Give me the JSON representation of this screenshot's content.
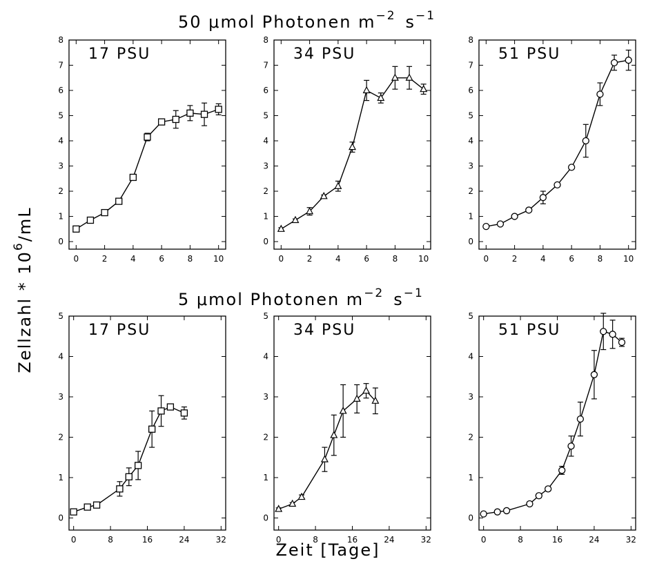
{
  "figure": {
    "row_titles": [
      "50 μmol Photonen m",
      "5 μmol Photonen m"
    ],
    "row_title_units": {
      "exp1": "−2",
      "s": "s",
      "exp2": "−1"
    },
    "ylabel": "Zellzahl * 10",
    "ylabel_exp": "6",
    "ylabel_unit": "/mL",
    "xlabel": "Zeit [Tage]",
    "colors": {
      "ink": "#000000",
      "background": "#ffffff"
    }
  },
  "chart_data": [
    {
      "type": "line",
      "panel": "top-left",
      "title": "17 PSU",
      "marker": "square",
      "xlim": [
        -0.5,
        10.5
      ],
      "ylim": [
        -0.3,
        8
      ],
      "xticks": [
        0,
        2,
        4,
        6,
        8,
        10
      ],
      "yticks": [
        0,
        1,
        2,
        3,
        4,
        5,
        6,
        7,
        8
      ],
      "x": [
        0,
        1,
        2,
        3,
        4,
        5,
        6,
        7,
        8,
        9,
        10
      ],
      "y": [
        0.5,
        0.85,
        1.15,
        1.6,
        2.55,
        4.15,
        4.75,
        4.85,
        5.1,
        5.05,
        5.25
      ],
      "err": [
        0.08,
        0.08,
        0.08,
        0.08,
        0.08,
        0.15,
        0.1,
        0.35,
        0.3,
        0.45,
        0.22
      ]
    },
    {
      "type": "line",
      "panel": "top-middle",
      "title": "34 PSU",
      "marker": "triangle",
      "xlim": [
        -0.5,
        10.5
      ],
      "ylim": [
        -0.3,
        8
      ],
      "xticks": [
        0,
        2,
        4,
        6,
        8,
        10
      ],
      "yticks": [
        0,
        1,
        2,
        3,
        4,
        5,
        6,
        7,
        8
      ],
      "x": [
        0,
        1,
        2,
        3,
        4,
        5,
        6,
        7,
        8,
        9,
        10
      ],
      "y": [
        0.5,
        0.85,
        1.2,
        1.8,
        2.2,
        3.75,
        6.0,
        5.7,
        6.5,
        6.5,
        6.05
      ],
      "err": [
        0.05,
        0.05,
        0.15,
        0.05,
        0.2,
        0.2,
        0.4,
        0.2,
        0.45,
        0.45,
        0.2
      ]
    },
    {
      "type": "line",
      "panel": "top-right",
      "title": "51 PSU",
      "marker": "circle",
      "xlim": [
        -0.5,
        10.5
      ],
      "ylim": [
        -0.3,
        8
      ],
      "xticks": [
        0,
        2,
        4,
        6,
        8,
        10
      ],
      "yticks": [
        0,
        1,
        2,
        3,
        4,
        5,
        6,
        7,
        8
      ],
      "x": [
        0,
        1,
        2,
        3,
        4,
        5,
        6,
        7,
        8,
        9,
        10
      ],
      "y": [
        0.6,
        0.7,
        1.0,
        1.25,
        1.75,
        2.25,
        2.95,
        4.0,
        5.85,
        7.1,
        7.2
      ],
      "err": [
        0.05,
        0.05,
        0.05,
        0.05,
        0.25,
        0.05,
        0.05,
        0.65,
        0.45,
        0.3,
        0.4
      ]
    },
    {
      "type": "line",
      "panel": "bottom-left",
      "title": "17 PSU",
      "marker": "square",
      "xlim": [
        -1,
        33
      ],
      "ylim": [
        -0.3,
        5
      ],
      "xticks": [
        0,
        8,
        16,
        24,
        32
      ],
      "yticks": [
        0,
        1,
        2,
        3,
        4,
        5
      ],
      "x": [
        0,
        3,
        5,
        10,
        12,
        14,
        17,
        19,
        21,
        24
      ],
      "y": [
        0.15,
        0.27,
        0.32,
        0.72,
        1.02,
        1.3,
        2.2,
        2.65,
        2.75,
        2.6
      ],
      "err": [
        0.05,
        0.05,
        0.05,
        0.18,
        0.22,
        0.35,
        0.45,
        0.38,
        0.05,
        0.15
      ]
    },
    {
      "type": "line",
      "panel": "bottom-middle",
      "title": "34 PSU",
      "marker": "triangle",
      "xlim": [
        -1,
        33
      ],
      "ylim": [
        -0.3,
        5
      ],
      "xticks": [
        0,
        8,
        16,
        24,
        32
      ],
      "yticks": [
        0,
        1,
        2,
        3,
        4,
        5
      ],
      "x": [
        0,
        3,
        5,
        10,
        12,
        14,
        17,
        19,
        21
      ],
      "y": [
        0.22,
        0.35,
        0.52,
        1.45,
        2.05,
        2.65,
        2.95,
        3.15,
        2.9
      ],
      "err": [
        0.03,
        0.03,
        0.05,
        0.3,
        0.5,
        0.65,
        0.35,
        0.18,
        0.32
      ]
    },
    {
      "type": "line",
      "panel": "bottom-right",
      "title": "51 PSU",
      "marker": "circle",
      "xlim": [
        -1,
        33
      ],
      "ylim": [
        -0.3,
        5
      ],
      "xticks": [
        0,
        8,
        16,
        24,
        32
      ],
      "yticks": [
        0,
        1,
        2,
        3,
        4,
        5
      ],
      "x": [
        0,
        3,
        5,
        10,
        12,
        14,
        17,
        19,
        21,
        24,
        26,
        28,
        30
      ],
      "y": [
        0.1,
        0.15,
        0.18,
        0.35,
        0.55,
        0.72,
        1.18,
        1.78,
        2.45,
        3.55,
        4.62,
        4.55,
        4.35
      ],
      "err": [
        0.03,
        0.03,
        0.03,
        0.05,
        0.05,
        0.05,
        0.1,
        0.25,
        0.42,
        0.6,
        0.45,
        0.35,
        0.1
      ]
    }
  ]
}
